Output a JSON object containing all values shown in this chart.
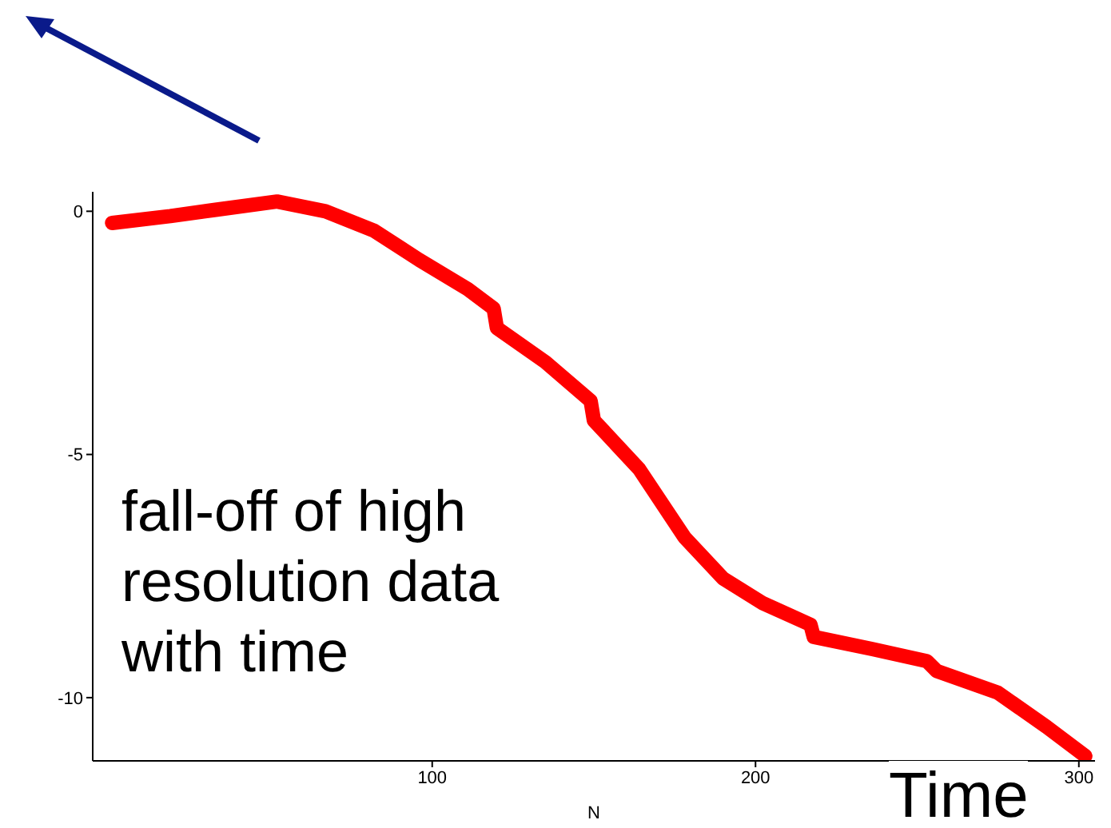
{
  "chart_data": {
    "type": "line",
    "xlabel": "N",
    "x": [
      1,
      19,
      33,
      52,
      67,
      82,
      96,
      111,
      119,
      120,
      135,
      149,
      150,
      164,
      178,
      190,
      202,
      217,
      218,
      236,
      253,
      256,
      275,
      290,
      302
    ],
    "series": [
      {
        "color": "#ff0000",
        "values": [
          -0.24,
          -0.1,
          0.03,
          0.2,
          0,
          -0.4,
          -1.0,
          -1.6,
          -2.0,
          -2.4,
          -3.1,
          -3.9,
          -4.3,
          -5.3,
          -6.7,
          -7.55,
          -8.05,
          -8.5,
          -8.75,
          -9.0,
          -9.25,
          -9.45,
          -9.9,
          -10.6,
          -11.2
        ]
      }
    ],
    "xlim": [
      -5,
      305
    ],
    "ylim": [
      -11.3,
      0.4
    ],
    "xticks": [
      100,
      200,
      300
    ],
    "yticks": [
      0,
      -5,
      -10
    ],
    "annotations": [
      "fall-off of high resolution data with time",
      "Time"
    ],
    "grid": false,
    "legend": false,
    "marker": "none",
    "line_style": "solid"
  }
}
